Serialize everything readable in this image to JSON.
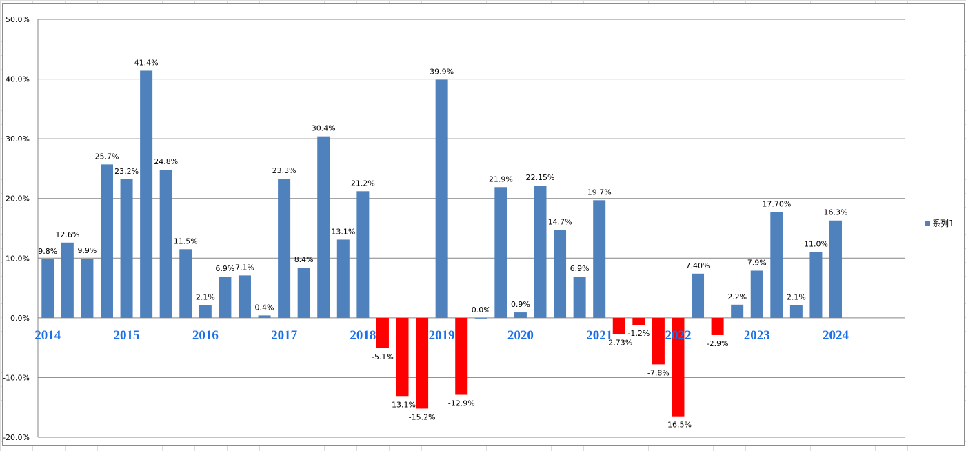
{
  "chart_data": {
    "type": "bar",
    "title": "",
    "xlabel": "",
    "ylabel": "",
    "ylim": [
      -20,
      50
    ],
    "yticks": [
      "50.0%",
      "40.0%",
      "30.0%",
      "20.0%",
      "10.0%",
      "0.0%",
      "-10.0%",
      "-20.0%"
    ],
    "ytick_values": [
      50,
      40,
      30,
      20,
      10,
      0,
      -10,
      -20
    ],
    "grid": true,
    "legend": {
      "entries": [
        "系列1"
      ],
      "placement": "right"
    },
    "year_labels": [
      "2014",
      "2015",
      "2016",
      "2017",
      "2018",
      "2019",
      "2020",
      "2021",
      "2022",
      "2023",
      "2024"
    ],
    "year_label_every": 4,
    "slots": 44,
    "series": [
      {
        "name": "系列1",
        "values": [
          9.8,
          12.6,
          9.9,
          25.7,
          23.2,
          41.4,
          24.8,
          11.5,
          2.1,
          6.9,
          7.1,
          0.4,
          23.3,
          8.4,
          30.4,
          13.1,
          21.2,
          -5.1,
          -13.1,
          -15.2,
          39.9,
          -12.9,
          0.0,
          21.9,
          0.9,
          22.15,
          14.7,
          6.9,
          19.7,
          -2.73,
          -1.2,
          -7.8,
          -16.5,
          7.4,
          -2.9,
          2.2,
          7.9,
          17.7,
          2.1,
          11.0,
          16.3
        ],
        "labels": [
          "9.8%",
          "12.6%",
          "9.9%",
          "25.7%",
          "23.2%",
          "41.4%",
          "24.8%",
          "11.5%",
          "2.1%",
          "6.9%",
          "7.1%",
          "0.4%",
          "23.3%",
          "8.4%",
          "30.4%",
          "13.1%",
          "21.2%",
          "-5.1%",
          "-13.1%",
          "-15.2%",
          "39.9%",
          "-12.9%",
          "0.0%",
          "21.9%",
          "0.9%",
          "22.15%",
          "14.7%",
          "6.9%",
          "19.7%",
          "-2.73%",
          "-1.2%",
          "-7.8%",
          "-16.5%",
          "7.40%",
          "-2.9%",
          "2.2%",
          "7.9%",
          "17.70%",
          "2.1%",
          "11.0%",
          "16.3%"
        ]
      }
    ],
    "colors": {
      "positive": "#4f81bd",
      "negative": "#ff0000",
      "year_label": "#1a6fe8"
    }
  }
}
